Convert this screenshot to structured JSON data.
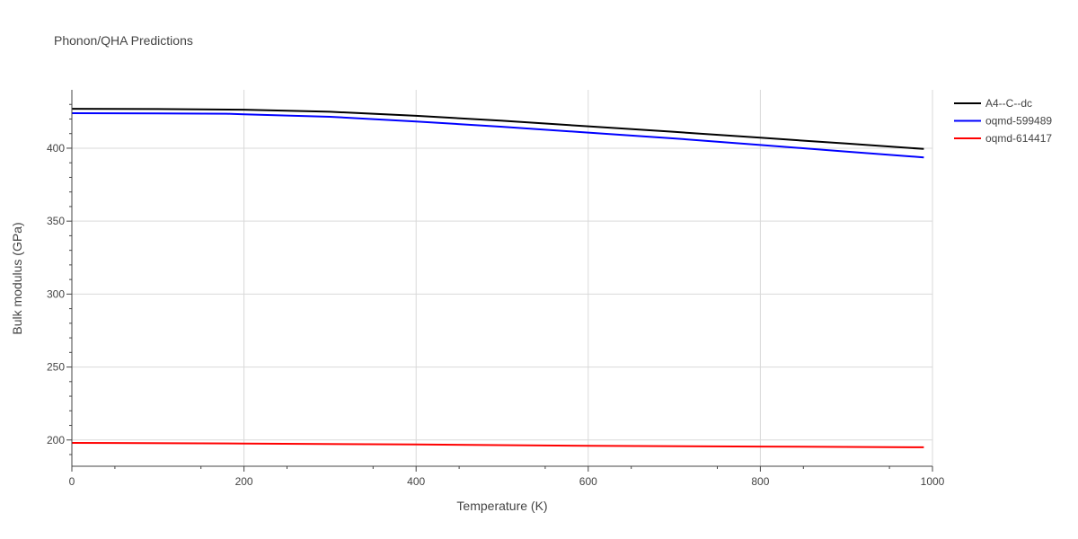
{
  "chart_data": {
    "type": "line",
    "title": "Phonon/QHA Predictions",
    "xlabel": "Temperature (K)",
    "ylabel": "Bulk modulus (GPa)",
    "xlim": [
      0,
      1000
    ],
    "ylim": [
      182,
      440
    ],
    "x_ticks": [
      0,
      200,
      400,
      600,
      800,
      1000
    ],
    "y_ticks": [
      200,
      250,
      300,
      350,
      400
    ],
    "grid": true,
    "legend_position": "top-right",
    "series": [
      {
        "name": "A4--C--dc",
        "color": "#000000",
        "x": [
          0,
          100,
          200,
          300,
          400,
          500,
          600,
          700,
          800,
          900,
          990
        ],
        "y": [
          427,
          426.8,
          426.4,
          425,
          422.2,
          418.8,
          415,
          411.2,
          407.2,
          403.2,
          399.5
        ]
      },
      {
        "name": "oqmd-599489",
        "color": "#0000ff",
        "x": [
          0,
          100,
          180,
          200,
          300,
          400,
          500,
          600,
          700,
          800,
          900,
          990
        ],
        "y": [
          424,
          423.8,
          423.6,
          423.2,
          421.5,
          418.3,
          414.7,
          410.7,
          406.7,
          402.2,
          397.7,
          393.7
        ]
      },
      {
        "name": "oqmd-614417",
        "color": "#ff0000",
        "x": [
          0,
          200,
          400,
          600,
          800,
          990
        ],
        "y": [
          198,
          197.6,
          196.9,
          196,
          195.5,
          195
        ]
      }
    ]
  }
}
